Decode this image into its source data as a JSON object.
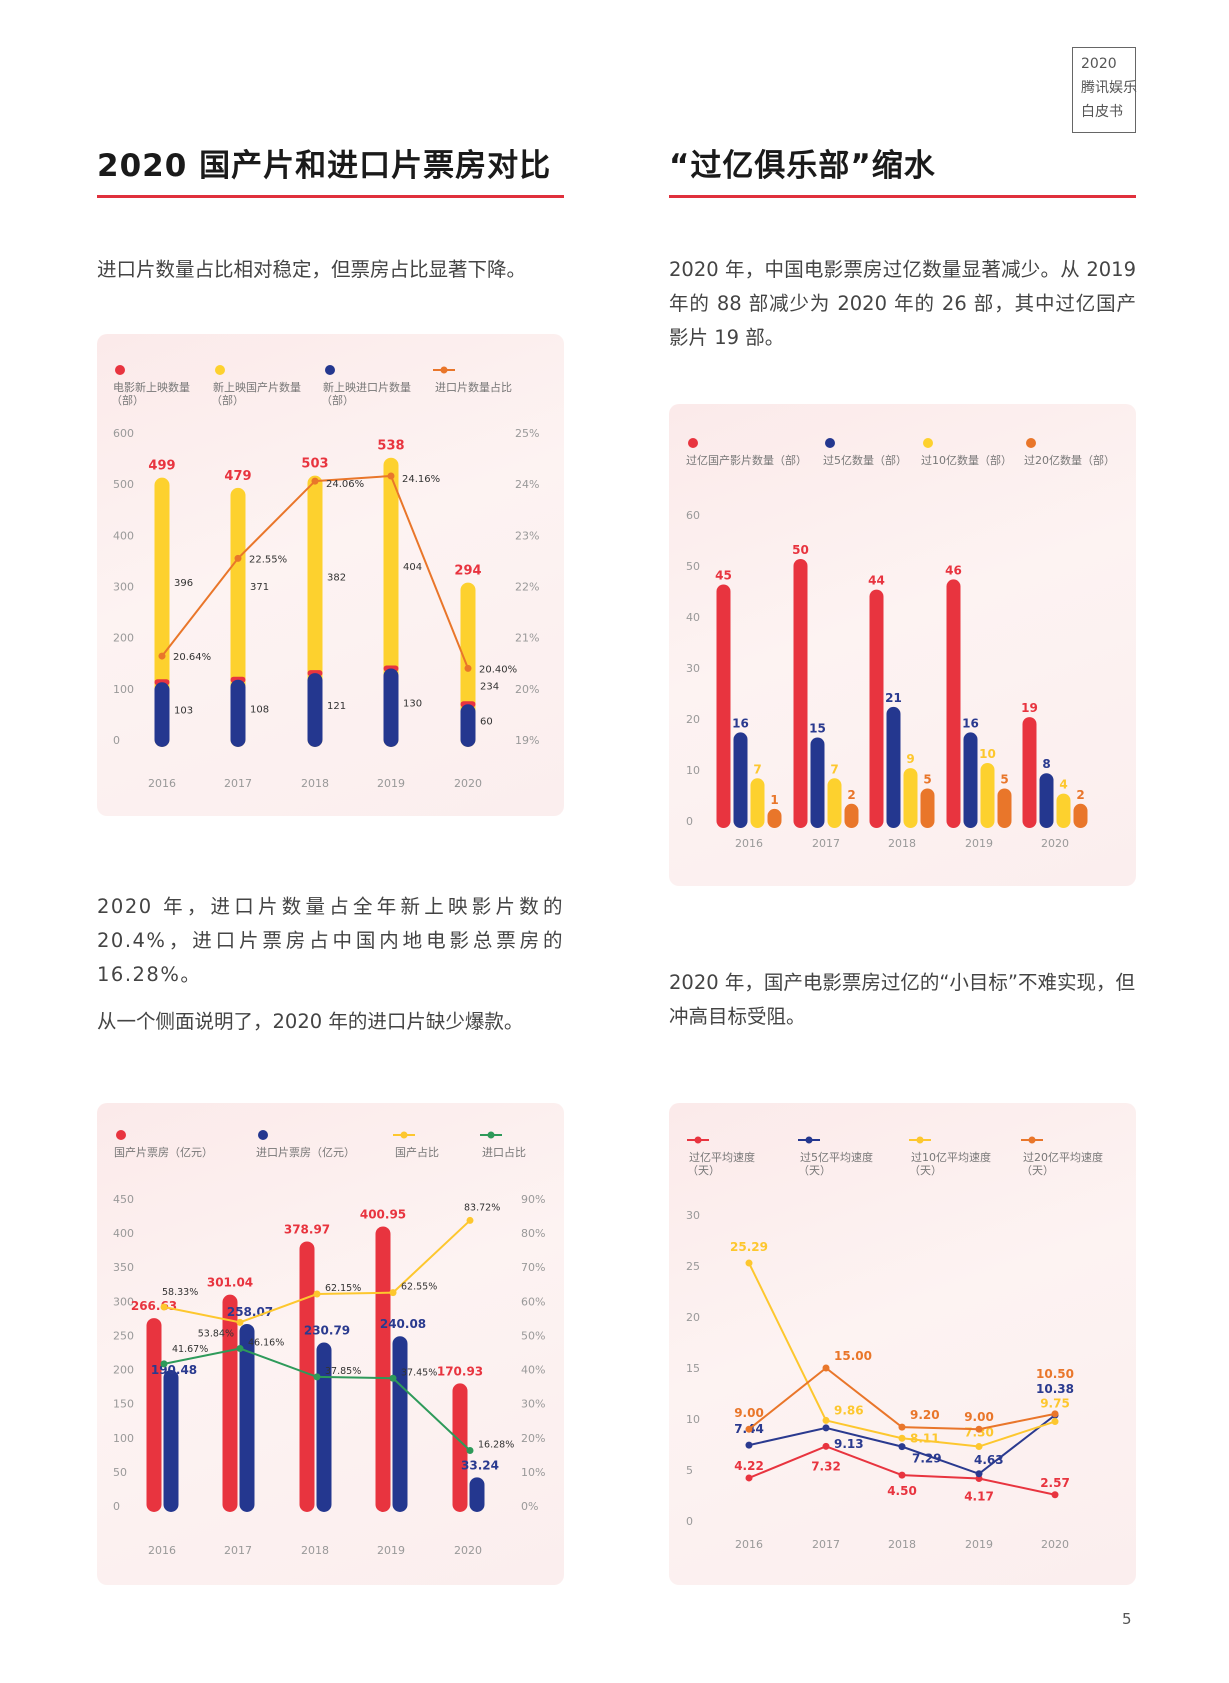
{
  "badge": {
    "lines": [
      "2020",
      "腾讯娱乐",
      "白皮书"
    ]
  },
  "left": {
    "title": "2020 国产片和进口片票房对比",
    "intro": "进口片数量占比相对稳定，但票房占比显著下降。",
    "para1": "2020 年，进口片数量占全年新上映影片数的 20.4%，进口片票房占中国内地电影总票房的 16.28%。",
    "para2": "从一个侧面说明了，2020 年的进口片缺少爆款。"
  },
  "right": {
    "title": "“过亿俱乐部”缩水",
    "intro": "2020 年，中国电影票房过亿数量显著减少。从 2019 年的 88 部减少为 2020 年的 26 部，其中过亿国产影片 19 部。",
    "para1": "2020 年，国产电影票房过亿的“小目标”不难实现，但冲高目标受阻。"
  },
  "page_number": "5",
  "colors": {
    "red": "#e8343f",
    "yellow": "#fdd12e",
    "blue": "#24378f",
    "orange": "#e9762a",
    "green": "#2e9a5a",
    "accent_rule": "#e0303c"
  },
  "chart_data": [
    {
      "type": "bar",
      "stacked": true,
      "categories": [
        "2016",
        "2017",
        "2018",
        "2019",
        "2020"
      ],
      "legend": [
        {
          "label": "电影新上映数量",
          "sub": "（部）",
          "marker": "dot",
          "color": "#e8343f"
        },
        {
          "label": "新上映国产片数量",
          "sub": "（部）",
          "marker": "dot",
          "color": "#fdd12e"
        },
        {
          "label": "新上映进口片数量",
          "sub": "（部）",
          "marker": "dot",
          "color": "#24378f"
        },
        {
          "label": "进口片数量占比",
          "sub": "",
          "marker": "line",
          "color": "#e9762a"
        }
      ],
      "series": [
        {
          "name": "电影新上映数量（部）",
          "values": [
            499,
            479,
            503,
            538,
            294
          ]
        },
        {
          "name": "新上映国产片数量（部）",
          "values": [
            396,
            371,
            382,
            404,
            234
          ]
        },
        {
          "name": "新上映进口片数量（部）",
          "values": [
            103,
            108,
            121,
            130,
            60
          ]
        },
        {
          "name": "进口片数量占比",
          "values": [
            20.64,
            22.55,
            24.06,
            24.16,
            20.4
          ],
          "labels": [
            "20.64%",
            "22.55%",
            "24.06%",
            "24.16%",
            "20.40%"
          ],
          "axis": "right"
        }
      ],
      "ylim": [
        0,
        600
      ],
      "yticks": [
        "0",
        "100",
        "200",
        "300",
        "400",
        "500",
        "600"
      ],
      "y2lim": [
        19,
        25
      ],
      "y2ticks": [
        "19%",
        "20%",
        "21%",
        "22%",
        "23%",
        "24%",
        "25%"
      ],
      "grid": false,
      "legend_position": "top"
    },
    {
      "type": "bar",
      "categories": [
        "2016",
        "2017",
        "2018",
        "2019",
        "2020"
      ],
      "legend": [
        {
          "label": "过亿国产影片数量（部）",
          "marker": "dot",
          "color": "#e8343f"
        },
        {
          "label": "过5亿数量（部）",
          "marker": "dot",
          "color": "#24378f"
        },
        {
          "label": "过10亿数量（部）",
          "marker": "dot",
          "color": "#fdd12e"
        },
        {
          "label": "过20亿数量（部）",
          "marker": "dot",
          "color": "#e9762a"
        }
      ],
      "series": [
        {
          "name": "过亿国产影片数量（部）",
          "values": [
            45,
            50,
            44,
            46,
            19
          ]
        },
        {
          "name": "过5亿数量（部）",
          "values": [
            16,
            15,
            21,
            16,
            8
          ]
        },
        {
          "name": "过10亿数量（部）",
          "values": [
            7,
            7,
            9,
            10,
            4
          ]
        },
        {
          "name": "过20亿数量（部）",
          "values": [
            1,
            2,
            5,
            5,
            2
          ]
        }
      ],
      "ylim": [
        0,
        60
      ],
      "yticks": [
        "0",
        "10",
        "20",
        "30",
        "40",
        "50",
        "60"
      ],
      "grid": false,
      "legend_position": "top"
    },
    {
      "type": "bar",
      "categories": [
        "2016",
        "2017",
        "2018",
        "2019",
        "2020"
      ],
      "legend": [
        {
          "label": "国产片票房（亿元）",
          "marker": "dot",
          "color": "#e8343f"
        },
        {
          "label": "进口片票房（亿元）",
          "marker": "dot",
          "color": "#24378f"
        },
        {
          "label": "国产占比",
          "marker": "line",
          "color": "#fdc72e"
        },
        {
          "label": "进口占比",
          "marker": "line",
          "color": "#2e9a5a"
        }
      ],
      "series": [
        {
          "name": "国产片票房（亿元）",
          "values": [
            266.63,
            301.04,
            378.97,
            400.95,
            170.93
          ],
          "labels": [
            "266.63",
            "301.04",
            "378.97",
            "400.95",
            "170.93"
          ]
        },
        {
          "name": "进口片票房（亿元）",
          "values": [
            190.48,
            258.07,
            230.79,
            240.08,
            33.24
          ],
          "labels": [
            "190.48",
            "258.07",
            "230.79",
            "240.08",
            "33.24"
          ]
        },
        {
          "name": "国产占比",
          "values": [
            58.33,
            53.84,
            62.15,
            62.55,
            83.72
          ],
          "labels": [
            "58.33%",
            "53.84%",
            "62.15%",
            "62.55%",
            "83.72%"
          ],
          "axis": "right"
        },
        {
          "name": "进口占比",
          "values": [
            41.67,
            46.16,
            37.85,
            37.45,
            16.28
          ],
          "labels": [
            "41.67%",
            "46.16%",
            "37.85%",
            "37.45%",
            "16.28%"
          ],
          "axis": "right"
        }
      ],
      "ylim": [
        0,
        450
      ],
      "yticks": [
        "0",
        "50",
        "100",
        "150",
        "200",
        "250",
        "300",
        "350",
        "400",
        "450"
      ],
      "y2lim": [
        0,
        90
      ],
      "y2ticks": [
        "0%",
        "10%",
        "20%",
        "30%",
        "40%",
        "50%",
        "60%",
        "70%",
        "80%",
        "90%"
      ],
      "grid": false,
      "legend_position": "top"
    },
    {
      "type": "line",
      "categories": [
        "2016",
        "2017",
        "2018",
        "2019",
        "2020"
      ],
      "legend": [
        {
          "label": "过亿平均速度",
          "sub": "（天）",
          "marker": "line",
          "color": "#e8343f"
        },
        {
          "label": "过5亿平均速度",
          "sub": "（天）",
          "marker": "line",
          "color": "#24378f"
        },
        {
          "label": "过10亿平均速度",
          "sub": "（天）",
          "marker": "line",
          "color": "#fdc72e"
        },
        {
          "label": "过20亿平均速度",
          "sub": "（天）",
          "marker": "line",
          "color": "#e9762a"
        }
      ],
      "series": [
        {
          "name": "过亿平均速度（天）",
          "values": [
            4.22,
            7.32,
            4.5,
            4.17,
            2.57
          ],
          "labels": [
            "4.22",
            "7.32",
            "4.50",
            "4.17",
            "2.57"
          ]
        },
        {
          "name": "过5亿平均速度（天）",
          "values": [
            7.44,
            9.13,
            7.29,
            4.63,
            10.38
          ],
          "labels": [
            "7.44",
            "9.13",
            "7.29",
            "4.63",
            "10.38"
          ]
        },
        {
          "name": "过10亿平均速度（天）",
          "values": [
            25.29,
            9.86,
            8.11,
            7.3,
            9.75
          ],
          "labels": [
            "25.29",
            "9.86",
            "8.11",
            "7.30",
            "9.75"
          ]
        },
        {
          "name": "过20亿平均速度（天）",
          "values": [
            9.0,
            15.0,
            9.2,
            9.0,
            10.5
          ],
          "labels": [
            "9.00",
            "15.00",
            "9.20",
            "9.00",
            "10.50"
          ]
        }
      ],
      "ylim": [
        0,
        30
      ],
      "yticks": [
        "0",
        "5",
        "10",
        "15",
        "20",
        "25",
        "30"
      ],
      "grid": false,
      "legend_position": "top"
    }
  ]
}
